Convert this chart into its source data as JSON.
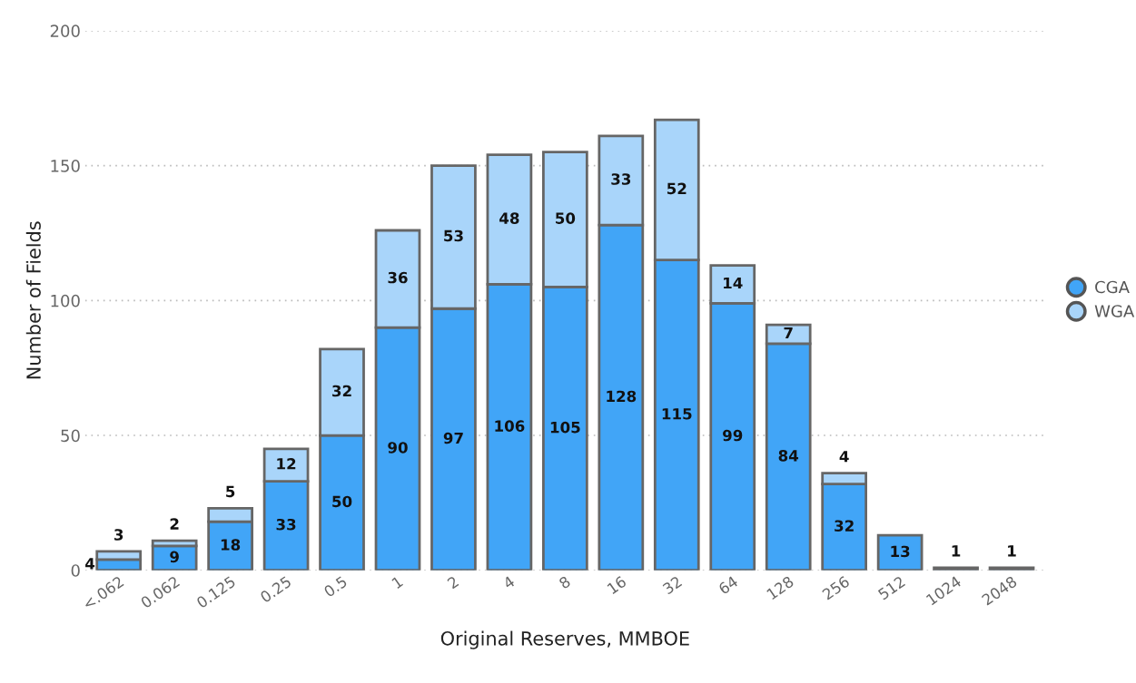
{
  "chart_data": {
    "type": "bar",
    "stacked": true,
    "xlabel": "Original Reserves, MMBOE",
    "ylabel": "Number of Fields",
    "categories": [
      "<.062",
      "0.062",
      "0.125",
      "0.25",
      "0.5",
      "1",
      "2",
      "4",
      "8",
      "16",
      "32",
      "64",
      "128",
      "256",
      "512",
      "1024",
      "2048"
    ],
    "series": [
      {
        "name": "CGA",
        "color": "#41a5f7",
        "values": [
          4,
          9,
          18,
          33,
          50,
          90,
          97,
          106,
          105,
          128,
          115,
          99,
          84,
          32,
          13,
          null,
          null
        ]
      },
      {
        "name": "WGA",
        "color": "#a9d5fa",
        "values": [
          3,
          2,
          5,
          12,
          32,
          36,
          53,
          48,
          50,
          33,
          52,
          14,
          7,
          4,
          null,
          1,
          1
        ]
      }
    ],
    "ylim": [
      0,
      200
    ],
    "yticks": [
      0,
      50,
      100,
      150,
      200
    ],
    "grid": "y",
    "legend": "right",
    "data_labels": true
  }
}
